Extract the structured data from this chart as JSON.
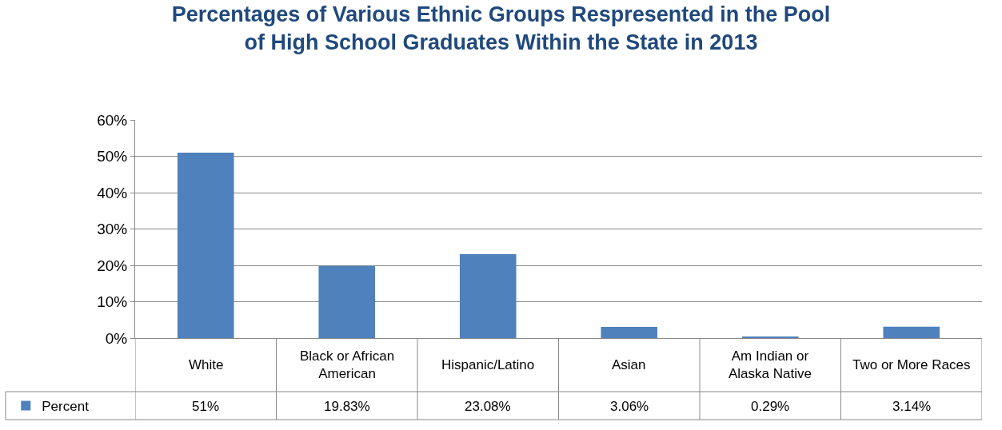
{
  "chart_data": {
    "type": "bar",
    "title": "Percentages of Various Ethnic Groups Respresented in the Pool of High School Graduates Within the State in 2013",
    "categories": [
      "White",
      "Black or African American",
      "Hispanic/Latino",
      "Asian",
      "Am Indian or Alaska Native",
      "Two or More Races"
    ],
    "series": [
      {
        "name": "Percent",
        "color": "#4f81bd",
        "values": [
          51,
          19.83,
          23.08,
          3.06,
          0.29,
          3.14
        ],
        "value_labels": [
          "51%",
          "19.83%",
          "23.08%",
          "3.06%",
          "0.29%",
          "3.14%"
        ]
      }
    ],
    "ylim": [
      0,
      60
    ],
    "yticks": [
      {
        "value": 0,
        "label": "0%"
      },
      {
        "value": 10,
        "label": "10%"
      },
      {
        "value": 20,
        "label": "20%"
      },
      {
        "value": 30,
        "label": "30%"
      },
      {
        "value": 40,
        "label": "40%"
      },
      {
        "value": 50,
        "label": "50%"
      },
      {
        "value": 60,
        "label": "60%"
      }
    ],
    "grid": "y",
    "legend": "bottom left"
  }
}
